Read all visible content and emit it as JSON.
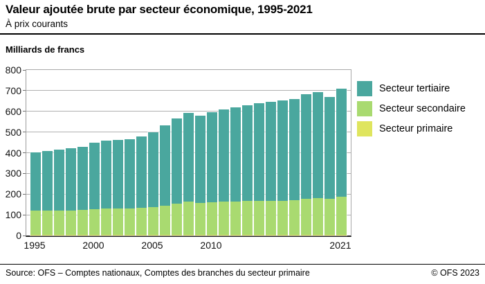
{
  "header": {
    "title": "Valeur ajoutée brute par secteur économique, 1995-2021",
    "subtitle": "À prix courants",
    "unit_label": "Milliards de francs"
  },
  "chart_data": {
    "type": "bar",
    "stacked": true,
    "title": "Valeur ajoutée brute par secteur économique, 1995-2021",
    "ylabel": "Milliards de francs",
    "ylim": [
      0,
      800
    ],
    "yticks": [
      0,
      100,
      200,
      300,
      400,
      500,
      600,
      700,
      800
    ],
    "xtick_labels": [
      "1995",
      "2000",
      "2005",
      "2010",
      "2021"
    ],
    "grid": true,
    "legend_position": "right",
    "categories": [
      1995,
      1996,
      1997,
      1998,
      1999,
      2000,
      2001,
      2002,
      2003,
      2004,
      2005,
      2006,
      2007,
      2008,
      2009,
      2010,
      2011,
      2012,
      2013,
      2014,
      2015,
      2016,
      2017,
      2018,
      2019,
      2020,
      2021
    ],
    "series": [
      {
        "name": "Secteur primaire",
        "color": "#dfe55e",
        "values": [
          5,
          5,
          5,
          5,
          5,
          5,
          5,
          5,
          5,
          5,
          5,
          5,
          5,
          5,
          5,
          5,
          5,
          5,
          5,
          5,
          5,
          5,
          5,
          5,
          5,
          5,
          5
        ]
      },
      {
        "name": "Secteur secondaire",
        "color": "#a9da70",
        "values": [
          116,
          117,
          117,
          117,
          118,
          121,
          126,
          126,
          126,
          128,
          131,
          138,
          150,
          160,
          153,
          156,
          158,
          158,
          161,
          164,
          162,
          164,
          167,
          173,
          175,
          172,
          182
        ]
      },
      {
        "name": "Secteur tertiaire",
        "color": "#4aa79e",
        "values": [
          281,
          285,
          292,
          300,
          304,
          322,
          329,
          331,
          335,
          347,
          364,
          389,
          411,
          426,
          420,
          435,
          447,
          456,
          464,
          472,
          480,
          483,
          487,
          505,
          513,
          492,
          523
        ]
      }
    ],
    "legend": [
      {
        "label": "Secteur tertiaire",
        "color": "#4aa79e"
      },
      {
        "label": "Secteur secondaire",
        "color": "#a9da70"
      },
      {
        "label": "Secteur primaire",
        "color": "#dfe55e"
      }
    ]
  },
  "colors": {
    "grid": "#b0b0b0",
    "frame": "#a9a9a9",
    "axis": "#222222",
    "text": "#000000"
  },
  "footer": {
    "source": "Source: OFS – Comptes nationaux, Comptes des branches du secteur primaire",
    "copyright": "© OFS 2023"
  }
}
